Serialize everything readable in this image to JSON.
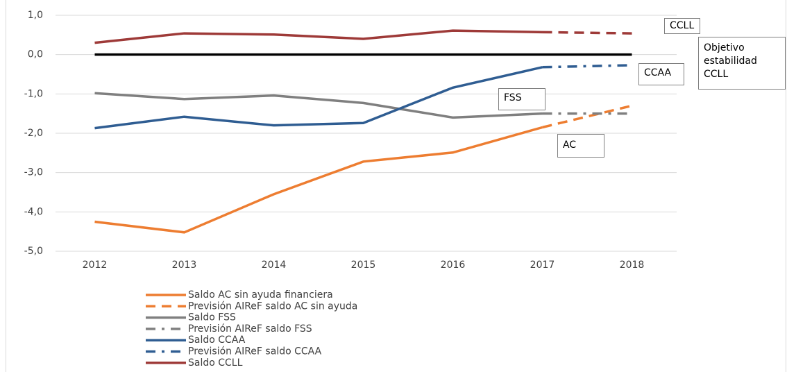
{
  "chart_data": {
    "type": "line",
    "categories": [
      "2012",
      "2013",
      "2014",
      "2015",
      "2016",
      "2017",
      "2018"
    ],
    "ylim": [
      -5,
      1
    ],
    "yticks": [
      {
        "value": -5,
        "label": "-5,0"
      },
      {
        "value": -4,
        "label": "-4,0"
      },
      {
        "value": -3,
        "label": "-3,0"
      },
      {
        "value": -2,
        "label": "-2,0"
      },
      {
        "value": -1,
        "label": "-1,0"
      },
      {
        "value": 0,
        "label": "0,0"
      },
      {
        "value": 1,
        "label": "1,0"
      }
    ],
    "grid": true,
    "series": [
      {
        "name": "Saldo AC sin ayuda financiera",
        "color": "#ed7d31",
        "dash": "solid",
        "values": [
          -4.25,
          -4.52,
          -3.55,
          -2.72,
          -2.49,
          -1.85,
          null
        ]
      },
      {
        "name": "Previsión AIReF saldo AC sin ayuda",
        "color": "#ed7d31",
        "dash": "dashed",
        "values": [
          null,
          null,
          null,
          null,
          null,
          -1.85,
          -1.3
        ]
      },
      {
        "name": "Saldo FSS",
        "color": "#7f7f7f",
        "dash": "solid",
        "values": [
          -0.98,
          -1.13,
          -1.04,
          -1.23,
          -1.6,
          -1.5,
          null
        ]
      },
      {
        "name": "Previsión AIReF saldo FSS",
        "color": "#7f7f7f",
        "dash": "dashdot",
        "values": [
          null,
          null,
          null,
          null,
          null,
          -1.5,
          -1.5
        ]
      },
      {
        "name": "Saldo CCAA",
        "color": "#2f5d92",
        "dash": "solid",
        "values": [
          -1.87,
          -1.58,
          -1.8,
          -1.74,
          -0.84,
          -0.32,
          null
        ]
      },
      {
        "name": "Previsión AIReF saldo CCAA",
        "color": "#2f5d92",
        "dash": "dashdot",
        "values": [
          null,
          null,
          null,
          null,
          null,
          -0.32,
          -0.27
        ]
      },
      {
        "name": "Saldo CCLL",
        "color": "#9e3a38",
        "dash": "solid",
        "values": [
          0.3,
          0.54,
          0.51,
          0.4,
          0.61,
          0.57,
          null
        ]
      },
      {
        "color": "#9e3a38",
        "dash": "dashed",
        "values": [
          null,
          null,
          null,
          null,
          null,
          0.57,
          0.54
        ]
      },
      {
        "color": "#000000",
        "dash": "solid",
        "values": [
          0,
          0,
          0,
          0,
          0,
          0,
          0
        ]
      }
    ],
    "annotations": [
      "CCLL",
      "Objetivo estabilidad CCLL",
      "CCAA",
      "FSS",
      "AC"
    ]
  }
}
